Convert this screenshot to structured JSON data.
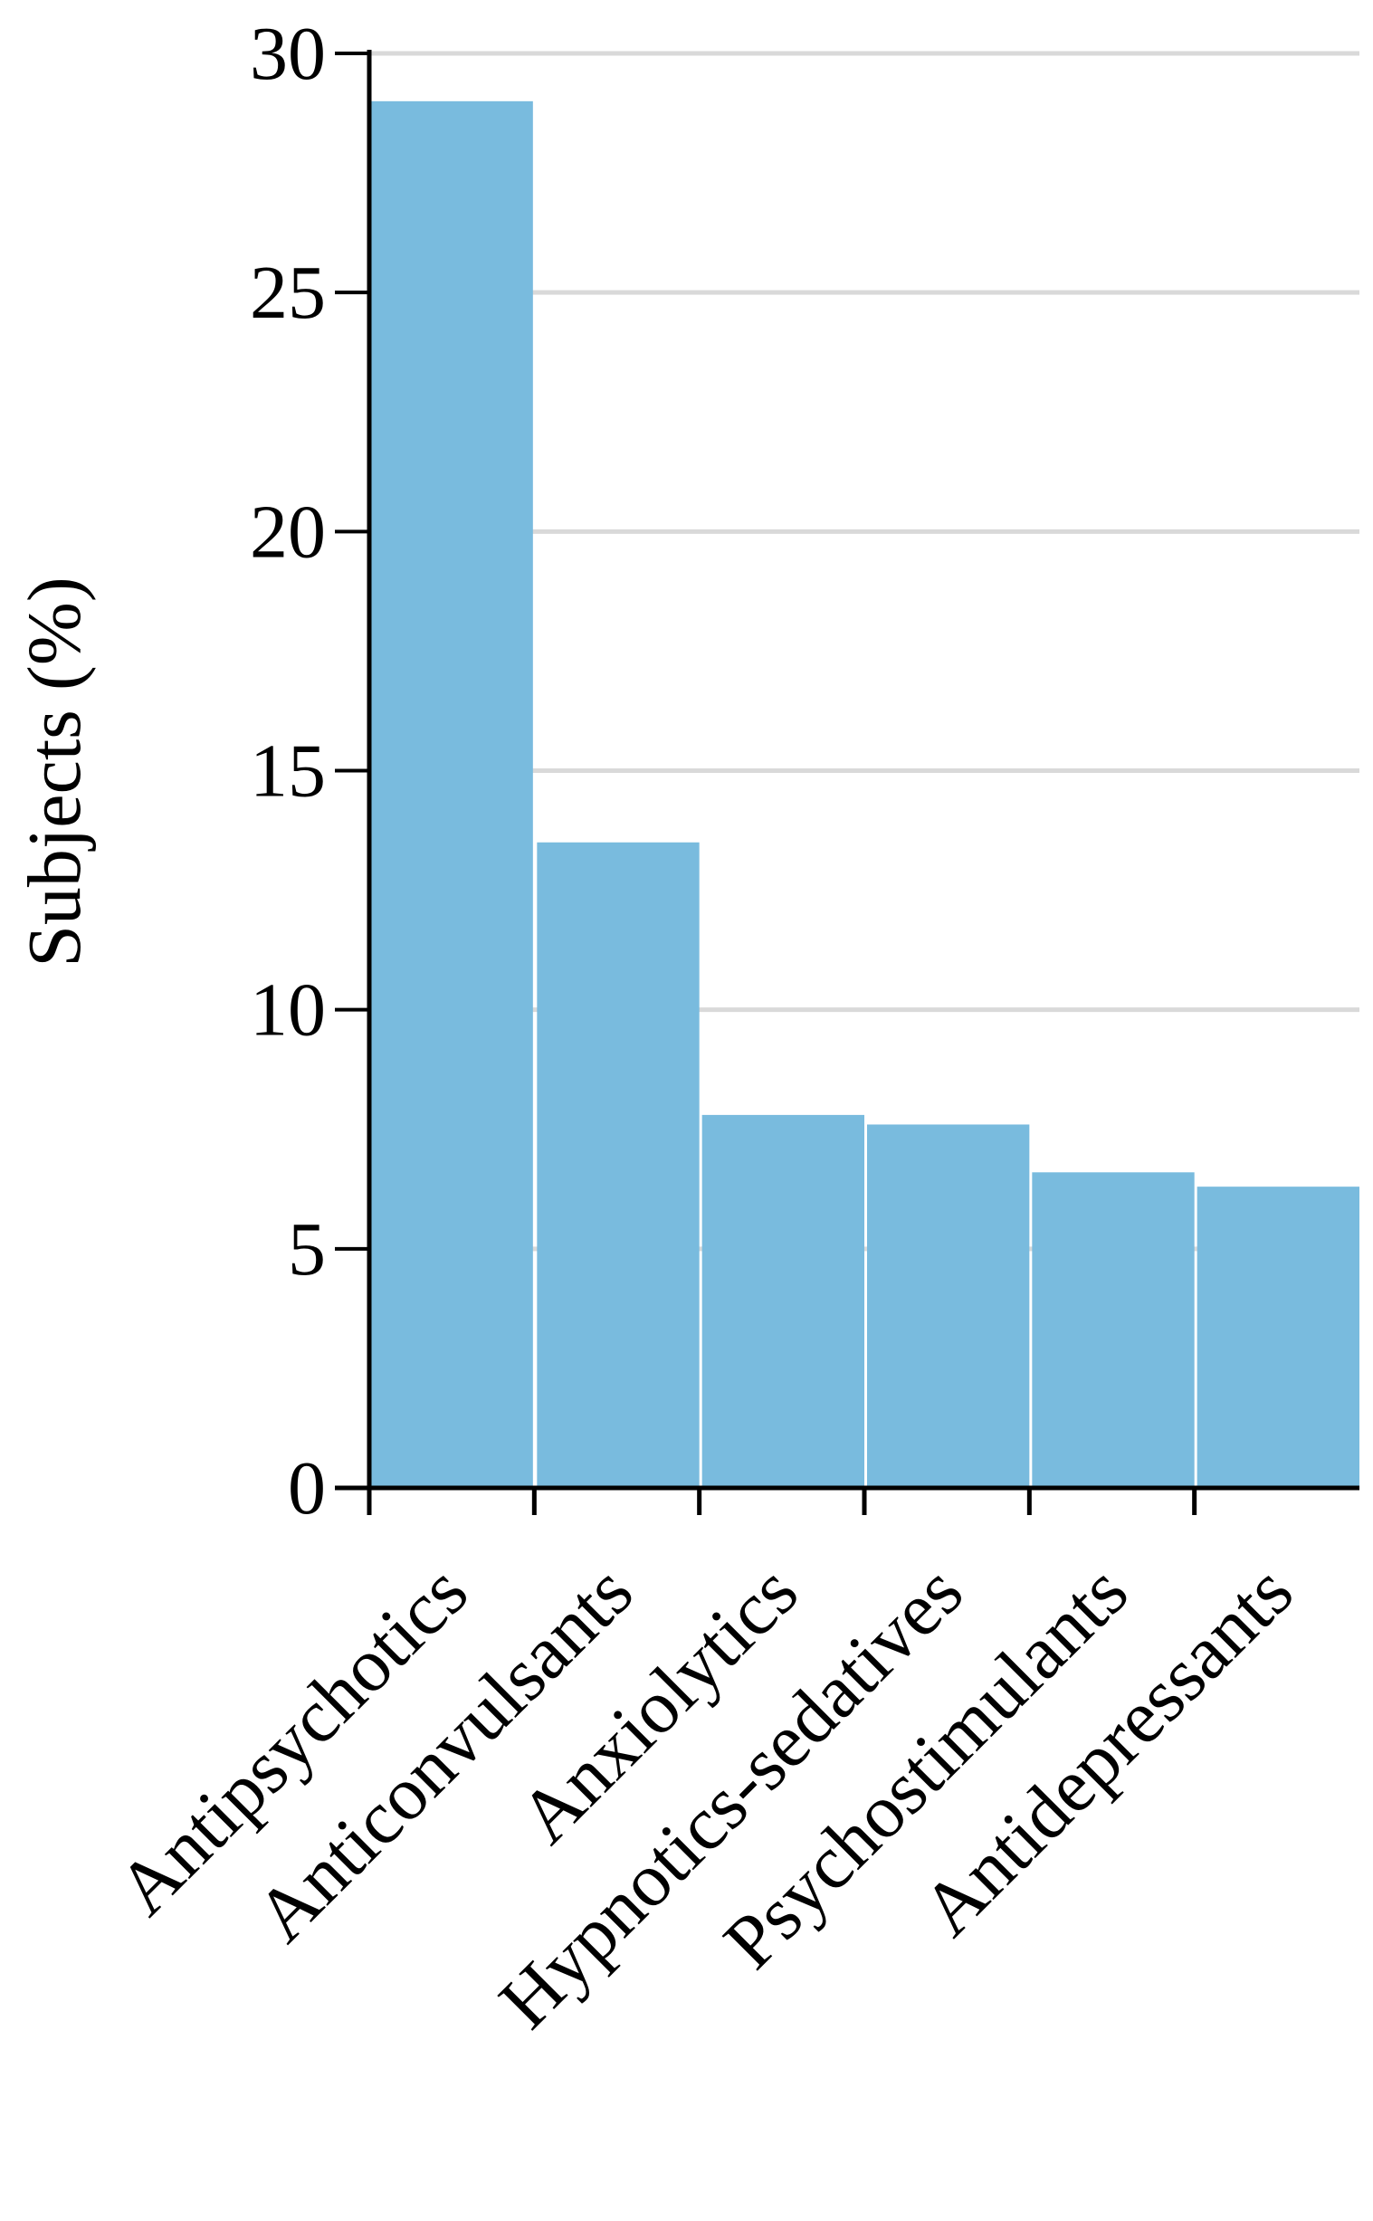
{
  "chart_data": {
    "type": "bar",
    "title": "",
    "xlabel": "",
    "ylabel": "Subjects (%)",
    "categories": [
      "Antipsychotics",
      "Anticonvulsants",
      "Anxiolytics",
      "Hypnotics-sedatives",
      "Psychostimulants",
      "Antidepressants"
    ],
    "values": [
      29.0,
      13.5,
      7.8,
      7.6,
      6.6,
      6.3
    ],
    "ylim": [
      0,
      30
    ],
    "yticks": [
      "0",
      "5",
      "10",
      "15",
      "20",
      "25",
      "30"
    ],
    "grid": true,
    "bar_color": "#79bbde",
    "grid_color": "#d9d9d9",
    "axis_color": "#000000"
  }
}
